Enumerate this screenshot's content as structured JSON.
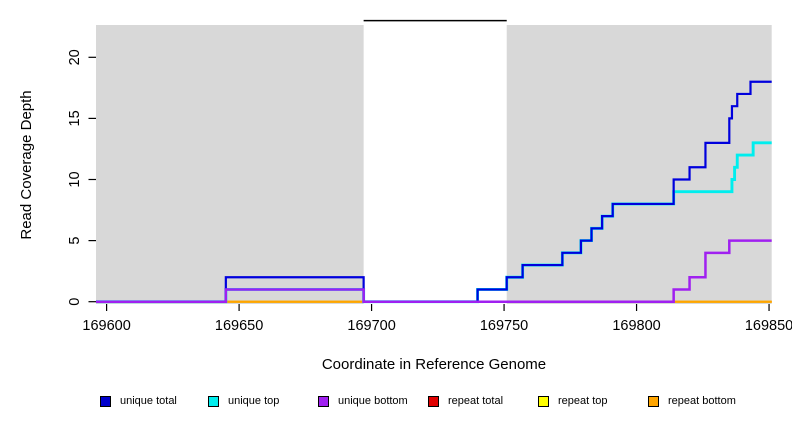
{
  "chart_data": {
    "type": "line",
    "subtype": "step-coverage",
    "title": "",
    "xlabel": "Coordinate in Reference Genome",
    "ylabel": "Read Coverage Depth",
    "xlim": [
      169596,
      169851
    ],
    "ylim": [
      0,
      23
    ],
    "x_ticks": [
      169600,
      169650,
      169700,
      169750,
      169800,
      169850
    ],
    "y_ticks": [
      0,
      5,
      10,
      15,
      20
    ],
    "grid": false,
    "plot_bg_color": "#d8d8d8",
    "masked_region": {
      "x_start": 169697,
      "x_end": 169751,
      "top_value": 23,
      "fill": "#ffffff",
      "border_color": "#000000"
    },
    "series": [
      {
        "name": "unique total",
        "color": "#0000DD",
        "points": [
          [
            169596,
            0
          ],
          [
            169645,
            2
          ],
          [
            169697,
            0
          ],
          [
            169740,
            1
          ],
          [
            169751,
            2
          ],
          [
            169757,
            3
          ],
          [
            169772,
            4
          ],
          [
            169779,
            5
          ],
          [
            169783,
            6
          ],
          [
            169787,
            7
          ],
          [
            169791,
            8
          ],
          [
            169814,
            10
          ],
          [
            169820,
            11
          ],
          [
            169826,
            13
          ],
          [
            169835,
            15
          ],
          [
            169836,
            16
          ],
          [
            169838,
            17
          ],
          [
            169843,
            18
          ]
        ]
      },
      {
        "name": "unique top",
        "color": "#00EEEE",
        "points": [
          [
            169596,
            0
          ],
          [
            169645,
            1
          ],
          [
            169697,
            0
          ],
          [
            169740,
            1
          ],
          [
            169751,
            2
          ],
          [
            169757,
            3
          ],
          [
            169772,
            4
          ],
          [
            169779,
            5
          ],
          [
            169783,
            6
          ],
          [
            169787,
            7
          ],
          [
            169791,
            8
          ],
          [
            169814,
            9
          ],
          [
            169836,
            10
          ],
          [
            169837,
            11
          ],
          [
            169838,
            12
          ],
          [
            169844,
            13
          ]
        ]
      },
      {
        "name": "unique bottom",
        "color": "#A020F0",
        "points": [
          [
            169596,
            0
          ],
          [
            169645,
            1
          ],
          [
            169697,
            0
          ],
          [
            169814,
            1
          ],
          [
            169820,
            2
          ],
          [
            169826,
            4
          ],
          [
            169835,
            5
          ]
        ]
      },
      {
        "name": "repeat total",
        "color": "#E00000",
        "points": [
          [
            169596,
            0
          ]
        ]
      },
      {
        "name": "repeat top",
        "color": "#FFFF00",
        "points": [
          [
            169596,
            0
          ]
        ]
      },
      {
        "name": "repeat bottom",
        "color": "#FFA500",
        "points": [
          [
            169596,
            0
          ]
        ]
      }
    ],
    "legend": {
      "position": "bottom",
      "entries": [
        {
          "label": "unique total",
          "color": "#0000CC"
        },
        {
          "label": "unique top",
          "color": "#00EEEE"
        },
        {
          "label": "unique bottom",
          "color": "#A020F0"
        },
        {
          "label": "repeat total",
          "color": "#E00000"
        },
        {
          "label": "repeat top",
          "color": "#FFFF00"
        },
        {
          "label": "repeat bottom",
          "color": "#FFA500"
        }
      ]
    }
  }
}
